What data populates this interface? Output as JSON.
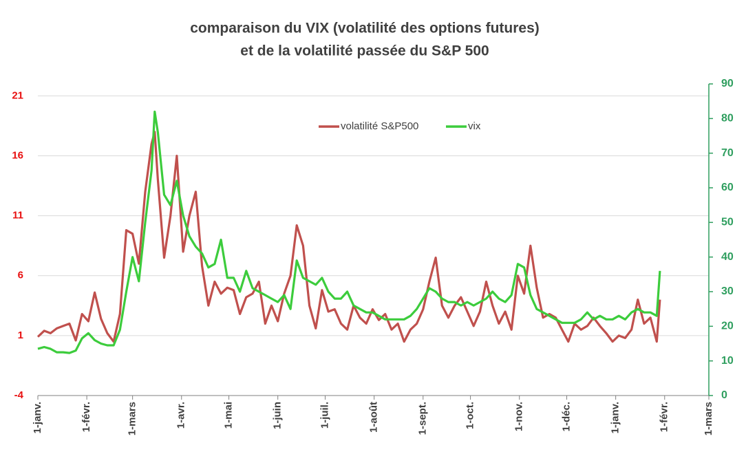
{
  "chart_data": {
    "type": "line",
    "title": [
      "comparaison du VIX (volatilité des options futures)",
      "et de la volatilité passée du S&P 500"
    ],
    "x": [
      0,
      4,
      8,
      12,
      16,
      20,
      24,
      28,
      32,
      36,
      40,
      44,
      48,
      52,
      56,
      60,
      64,
      68,
      72,
      74,
      76,
      80,
      84,
      88,
      92,
      96,
      100,
      104,
      108,
      112,
      116,
      120,
      124,
      128,
      132,
      136,
      140,
      144,
      148,
      152,
      156,
      160,
      164,
      168,
      172,
      176,
      180,
      184,
      188,
      192,
      196,
      200,
      204,
      208,
      212,
      216,
      220,
      224,
      228,
      232,
      236,
      240,
      244,
      248,
      252,
      256,
      260,
      264,
      268,
      272,
      276,
      280,
      284,
      288,
      292,
      296,
      300,
      304,
      308,
      312,
      316,
      320,
      324,
      328,
      332,
      336,
      340,
      344,
      348,
      352,
      356,
      360,
      364,
      368,
      372,
      376,
      380,
      384,
      388,
      392,
      394
    ],
    "series": [
      {
        "name": "volatilité S&P500",
        "color": "#c0504d",
        "values": [
          0.9,
          1.4,
          1.2,
          1.6,
          1.8,
          2.0,
          0.6,
          2.8,
          2.2,
          4.6,
          2.4,
          1.2,
          0.5,
          2.8,
          9.8,
          9.5,
          7,
          13,
          17,
          18,
          14,
          7.5,
          11,
          16,
          8,
          11,
          13,
          6.8,
          3.5,
          5.5,
          4.5,
          5,
          4.8,
          2.8,
          4.2,
          4.5,
          5.5,
          2,
          3.5,
          2.2,
          4.5,
          6,
          10.2,
          8.5,
          3.5,
          1.6,
          4.8,
          3.0,
          3.2,
          2.0,
          1.5,
          3.5,
          2.5,
          2.0,
          3.2,
          2.3,
          2.8,
          1.5,
          2.0,
          0.5,
          1.5,
          2.0,
          3.2,
          5.5,
          7.5,
          3.5,
          2.5,
          3.5,
          4.2,
          3.0,
          1.8,
          3.0,
          5.5,
          3.5,
          2.0,
          3.0,
          1.5,
          6,
          4.5,
          8.5,
          5.0,
          2.5,
          2.8,
          2.5,
          1.5,
          0.5,
          2.0,
          1.5,
          1.8,
          2.5,
          1.8,
          1.2,
          0.5,
          1.0,
          0.8,
          1.5,
          4.0,
          2.0,
          2.5,
          0.5,
          4
        ]
      },
      {
        "name": "vix",
        "color": "#3ccc3c",
        "axis": "y2",
        "values": [
          13.5,
          14,
          13.5,
          12.5,
          12.5,
          12.3,
          13,
          16.5,
          18,
          16,
          15,
          14.5,
          14.5,
          19,
          30,
          40,
          33,
          50,
          65,
          82,
          76,
          58,
          55,
          62,
          52,
          46,
          43,
          41,
          37,
          38,
          45,
          34,
          34,
          30,
          36,
          31,
          30,
          29,
          28,
          27,
          29,
          25,
          39,
          34,
          33,
          32,
          34,
          30,
          28,
          28,
          30,
          26,
          25,
          24,
          24,
          23,
          22,
          22,
          22,
          22,
          23,
          25,
          28,
          31,
          30,
          28,
          27,
          27,
          26,
          27,
          26,
          27,
          28,
          30,
          28,
          27,
          29,
          38,
          37,
          29,
          25,
          24,
          23,
          22,
          21,
          21,
          21,
          22,
          24,
          22,
          23,
          22,
          22,
          23,
          22,
          24,
          25,
          24,
          24,
          23,
          36
        ]
      }
    ],
    "xlim": [
      0,
      425
    ],
    "xticks": [
      {
        "value": 0,
        "label": "1-janv."
      },
      {
        "value": 31,
        "label": "1-févr."
      },
      {
        "value": 60,
        "label": "1-mars"
      },
      {
        "value": 91,
        "label": "1-avr."
      },
      {
        "value": 121,
        "label": "1-mai"
      },
      {
        "value": 152,
        "label": "1-juin"
      },
      {
        "value": 182,
        "label": "1-juil."
      },
      {
        "value": 213,
        "label": "1-août"
      },
      {
        "value": 244,
        "label": "1-sept."
      },
      {
        "value": 274,
        "label": "1-oct."
      },
      {
        "value": 305,
        "label": "1-nov."
      },
      {
        "value": 335,
        "label": "1-déc."
      },
      {
        "value": 366,
        "label": "1-janv."
      },
      {
        "value": 397,
        "label": "1-févr."
      },
      {
        "value": 425,
        "label": "1-mars"
      }
    ],
    "ylim": [
      -4,
      22
    ],
    "yticks": [
      -4,
      1,
      6,
      11,
      16,
      21
    ],
    "y2lim": [
      0,
      90
    ],
    "y2ticks": [
      0,
      10,
      20,
      30,
      40,
      50,
      60,
      70,
      80,
      90
    ],
    "grid": true
  }
}
